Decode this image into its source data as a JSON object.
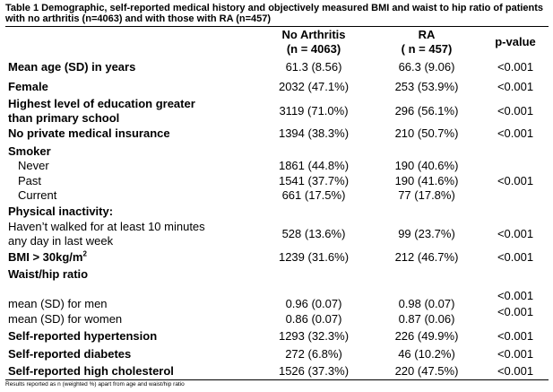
{
  "caption": "Table 1 Demographic, self-reported medical history and objectively measured BMI and waist to hip ratio of patients with no arthritis (n=4063) and with those with RA (n=457)",
  "headers": {
    "col1_line1": "No Arthritis",
    "col1_line2": "(n = 4063)",
    "col2_line1": "RA",
    "col2_line2": "( n = 457)",
    "col3": "p-value"
  },
  "rows": {
    "age": {
      "label": "Mean age (SD) in years",
      "no_arthritis": "61.3 (8.56)",
      "ra": "66.3 (9.06)",
      "p": "<0.001"
    },
    "female": {
      "label": "Female",
      "no_arthritis": "2032 (47.1%)",
      "ra": "253 (53.9%)",
      "p": "<0.001"
    },
    "education": {
      "label_line1": "Highest level of education greater",
      "label_line2": "than primary school",
      "no_arthritis": "3119 (71.0%)",
      "ra": "296 (56.1%)",
      "p": "<0.001"
    },
    "insurance": {
      "label": "No private medical insurance",
      "no_arthritis": "1394 (38.3%)",
      "ra": "210 (50.7%)",
      "p": "<0.001"
    },
    "smoker": {
      "label": "Smoker",
      "never": {
        "label": "Never",
        "no_arthritis": "1861 (44.8%)",
        "ra": "190 (40.6%)"
      },
      "past": {
        "label": "Past",
        "no_arthritis": "1541 (37.7%)",
        "ra": "190 (41.6%)"
      },
      "current": {
        "label": "Current",
        "no_arthritis": "661 (17.5%)",
        "ra": "77 (17.8%)"
      },
      "p": "<0.001"
    },
    "inactivity": {
      "label": "Physical inactivity:",
      "sub_line1": "Haven’t walked for at least 10 minutes",
      "sub_line2": "any day in last week",
      "no_arthritis": "528 (13.6%)",
      "ra": "99 (23.7%)",
      "p": "<0.001"
    },
    "bmi": {
      "label": "BMI > 30kg/m",
      "label_sup": "2",
      "no_arthritis": "1239 (31.6%)",
      "ra": "212 (46.7%)",
      "p": "<0.001"
    },
    "whr": {
      "label": "Waist/hip ratio",
      "men": {
        "label": "mean (SD) for men",
        "no_arthritis": "0.96 (0.07)",
        "ra": "0.98 (0.07)",
        "p": "<0.001"
      },
      "women": {
        "label": "mean (SD) for women",
        "no_arthritis": "0.86 (0.07)",
        "ra": "0.87 (0.06)",
        "p": "<0.001"
      }
    },
    "hypertension": {
      "label": "Self-reported hypertension",
      "no_arthritis": "1293 (32.3%)",
      "ra": "226 (49.9%)",
      "p": "<0.001"
    },
    "diabetes": {
      "label": "Self-reported diabetes",
      "no_arthritis": "272 (6.8%)",
      "ra": "46 (10.2%)",
      "p": "<0.001"
    },
    "cholesterol": {
      "label": "Self-reported high cholesterol",
      "no_arthritis": "1526 (37.3%)",
      "ra": "220 (47.5%)",
      "p": "<0.001"
    }
  },
  "footnote": "Results reported as n (weighted %) apart from age and waist/hip ratio"
}
